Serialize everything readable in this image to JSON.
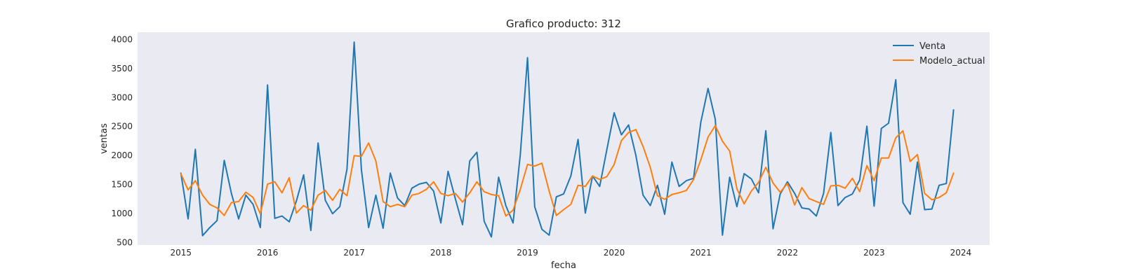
{
  "chart_data": {
    "type": "line",
    "title": "Grafico producto: 312",
    "xlabel": "fecha",
    "ylabel": "ventas",
    "xlim": [
      "2014-07-01",
      "2024-05-01"
    ],
    "ylim": [
      450,
      4120
    ],
    "x_ticks": [
      "2015",
      "2016",
      "2017",
      "2018",
      "2019",
      "2020",
      "2021",
      "2022",
      "2023",
      "2024"
    ],
    "y_ticks": [
      "500",
      "1000",
      "1500",
      "2000",
      "2500",
      "3000",
      "3500",
      "4000"
    ],
    "grid": false,
    "legend_position": "top-right",
    "background": "#EAEAF2",
    "x": [
      "2015-01",
      "2015-02",
      "2015-03",
      "2015-04",
      "2015-05",
      "2015-06",
      "2015-07",
      "2015-08",
      "2015-09",
      "2015-10",
      "2015-11",
      "2015-12",
      "2016-01",
      "2016-02",
      "2016-03",
      "2016-04",
      "2016-05",
      "2016-06",
      "2016-07",
      "2016-08",
      "2016-09",
      "2016-10",
      "2016-11",
      "2016-12",
      "2017-01",
      "2017-02",
      "2017-03",
      "2017-04",
      "2017-05",
      "2017-06",
      "2017-07",
      "2017-08",
      "2017-09",
      "2017-10",
      "2017-11",
      "2017-12",
      "2018-01",
      "2018-02",
      "2018-03",
      "2018-04",
      "2018-05",
      "2018-06",
      "2018-07",
      "2018-08",
      "2018-09",
      "2018-10",
      "2018-11",
      "2018-12",
      "2019-01",
      "2019-02",
      "2019-03",
      "2019-04",
      "2019-05",
      "2019-06",
      "2019-07",
      "2019-08",
      "2019-09",
      "2019-10",
      "2019-11",
      "2019-12",
      "2020-01",
      "2020-02",
      "2020-03",
      "2020-04",
      "2020-05",
      "2020-06",
      "2020-07",
      "2020-08",
      "2020-09",
      "2020-10",
      "2020-11",
      "2020-12",
      "2021-01",
      "2021-02",
      "2021-03",
      "2021-04",
      "2021-05",
      "2021-06",
      "2021-07",
      "2021-08",
      "2021-09",
      "2021-10",
      "2021-11",
      "2021-12",
      "2022-01",
      "2022-02",
      "2022-03",
      "2022-04",
      "2022-05",
      "2022-06",
      "2022-07",
      "2022-08",
      "2022-09",
      "2022-10",
      "2022-11",
      "2022-12",
      "2023-01",
      "2023-02",
      "2023-03",
      "2023-04",
      "2023-05",
      "2023-06",
      "2023-07",
      "2023-08",
      "2023-09",
      "2023-10",
      "2023-11",
      "2023-12"
    ],
    "series": [
      {
        "name": "Venta",
        "color": "#1F77B4",
        "values": [
          1690,
          900,
          2100,
          610,
          750,
          870,
          1910,
          1340,
          900,
          1310,
          1150,
          750,
          3210,
          910,
          950,
          850,
          1210,
          1660,
          700,
          2210,
          1220,
          990,
          1110,
          1760,
          3950,
          1750,
          750,
          1310,
          740,
          1690,
          1260,
          1130,
          1430,
          1500,
          1530,
          1380,
          830,
          1720,
          1250,
          800,
          1900,
          2050,
          860,
          590,
          1620,
          1130,
          830,
          2010,
          3680,
          1110,
          720,
          620,
          1280,
          1330,
          1640,
          2270,
          1000,
          1640,
          1460,
          2100,
          2730,
          2350,
          2520,
          2000,
          1310,
          1130,
          1480,
          980,
          1880,
          1460,
          1560,
          1600,
          2570,
          3150,
          2620,
          620,
          1620,
          1110,
          1680,
          1590,
          1350,
          2420,
          730,
          1330,
          1540,
          1340,
          1090,
          1070,
          950,
          1340,
          2390,
          1130,
          1270,
          1330,
          1570,
          2500,
          1120,
          2460,
          2550,
          3300,
          1180,
          980,
          1880,
          1060,
          1070,
          1480,
          1510,
          2780
        ]
      },
      {
        "name": "Modelo_actual",
        "color": "#FF7F0E",
        "values": [
          1680,
          1400,
          1560,
          1310,
          1150,
          1090,
          960,
          1180,
          1200,
          1360,
          1270,
          990,
          1500,
          1540,
          1350,
          1610,
          1000,
          1130,
          1050,
          1310,
          1390,
          1220,
          1410,
          1300,
          1990,
          1980,
          2210,
          1900,
          1200,
          1110,
          1150,
          1110,
          1310,
          1340,
          1410,
          1540,
          1340,
          1300,
          1340,
          1190,
          1350,
          1540,
          1370,
          1320,
          1300,
          950,
          1050,
          1410,
          1840,
          1810,
          1860,
          1380,
          960,
          1060,
          1150,
          1480,
          1460,
          1640,
          1580,
          1630,
          1840,
          2250,
          2390,
          2440,
          2150,
          1790,
          1300,
          1240,
          1320,
          1350,
          1390,
          1580,
          1920,
          2310,
          2510,
          2240,
          2070,
          1420,
          1160,
          1380,
          1530,
          1790,
          1520,
          1360,
          1510,
          1140,
          1440,
          1250,
          1200,
          1150,
          1470,
          1480,
          1430,
          1600,
          1370,
          1820,
          1560,
          1950,
          1950,
          2300,
          2420,
          1890,
          2010,
          1340,
          1230,
          1270,
          1350,
          1690
        ]
      }
    ]
  }
}
